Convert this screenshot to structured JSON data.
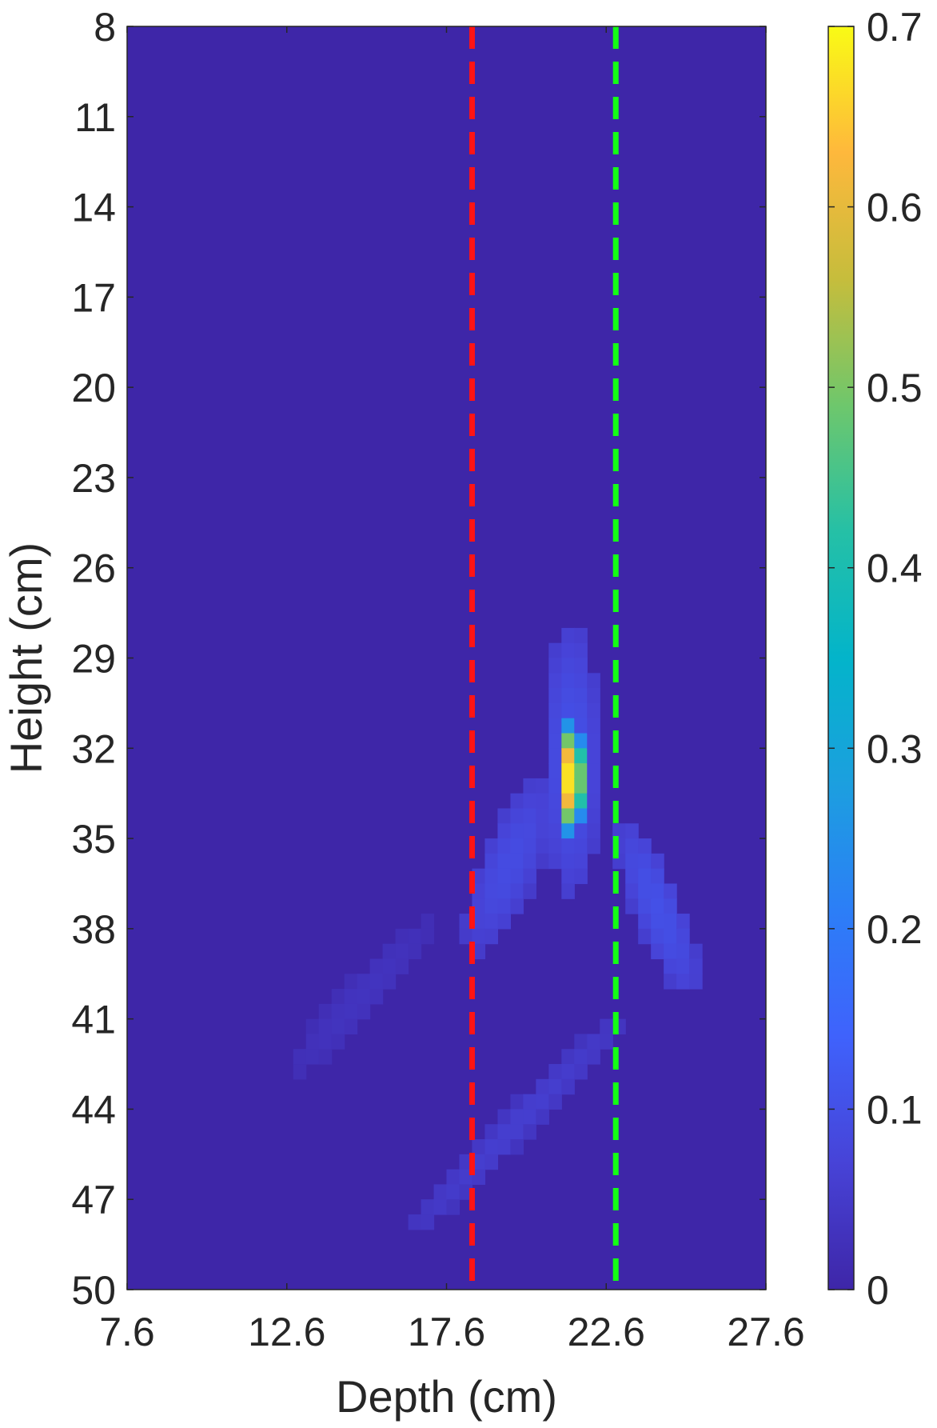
{
  "chart_data": {
    "type": "heatmap",
    "title": "",
    "xlabel": "Depth (cm)",
    "ylabel": "Height (cm)",
    "xlim": [
      7.6,
      27.6
    ],
    "ylim": [
      8,
      50
    ],
    "y_reversed": true,
    "xticks": [
      "7.6",
      "12.6",
      "17.6",
      "22.6",
      "27.6"
    ],
    "yticks": [
      "8",
      "11",
      "14",
      "17",
      "20",
      "23",
      "26",
      "29",
      "32",
      "35",
      "38",
      "41",
      "44",
      "47",
      "50"
    ],
    "colormap": "parula",
    "colorbar": {
      "range": [
        0,
        0.7
      ],
      "ticks": [
        "0",
        "0.1",
        "0.2",
        "0.3",
        "0.4",
        "0.5",
        "0.6",
        "0.7"
      ],
      "colors": [
        "#3e26a8",
        "#4743d7",
        "#3f62fc",
        "#2c7ef7",
        "#1c9fdf",
        "#03b4ca",
        "#25c0a6",
        "#6ec76c",
        "#c6bd3c",
        "#feb83c",
        "#f9fb15"
      ]
    },
    "background_value": 0.0,
    "blobs": [
      {
        "name": "main",
        "x_center": 21.5,
        "x_halfwidth": 0.45,
        "y_center": 33.0,
        "y_halfheight": 2.0,
        "peak": 0.7
      },
      {
        "name": "main-halo",
        "x_center": 21.5,
        "x_halfwidth": 0.9,
        "y_center": 32.4,
        "y_halfheight": 4.6,
        "peak": 0.1
      },
      {
        "name": "mid-left",
        "x_center": 19.6,
        "x_halfwidth": 1.0,
        "y_center": 35.8,
        "y_halfheight": 3.0,
        "tilt": -0.35,
        "peak": 0.09
      },
      {
        "name": "right",
        "x_center": 24.2,
        "x_halfwidth": 0.8,
        "y_center": 37.3,
        "y_halfheight": 3.0,
        "tilt": 0.35,
        "peak": 0.1
      },
      {
        "name": "lower-diagonal",
        "x_center": 19.8,
        "x_halfwidth": 0.7,
        "y_center": 44.5,
        "y_halfheight": 3.8,
        "tilt": -0.9,
        "peak": 0.06
      },
      {
        "name": "far-left",
        "x_center": 14.9,
        "x_halfwidth": 0.8,
        "y_center": 40.3,
        "y_halfheight": 2.6,
        "tilt": -0.8,
        "peak": 0.035
      }
    ],
    "reference_lines": [
      {
        "x": 18.4,
        "color": "#ff1414",
        "style": "dashed"
      },
      {
        "x": 22.9,
        "color": "#14ff14",
        "style": "dashed"
      }
    ]
  }
}
